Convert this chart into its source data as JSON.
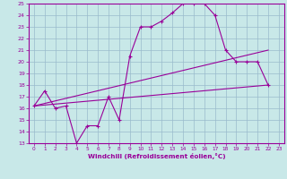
{
  "xlabel": "Windchill (Refroidissement éolien,°C)",
  "ylabel": "",
  "bg_color": "#c8e8e8",
  "line_color": "#990099",
  "grid_color": "#99bbcc",
  "xlim": [
    -0.5,
    23.5
  ],
  "ylim": [
    13,
    25
  ],
  "xticks": [
    0,
    1,
    2,
    3,
    4,
    5,
    6,
    7,
    8,
    9,
    10,
    11,
    12,
    13,
    14,
    15,
    16,
    17,
    18,
    19,
    20,
    21,
    22,
    23
  ],
  "yticks": [
    13,
    14,
    15,
    16,
    17,
    18,
    19,
    20,
    21,
    22,
    23,
    24,
    25
  ],
  "curve1_x": [
    0,
    1,
    2,
    3,
    4,
    5,
    6,
    7,
    8,
    9,
    10,
    11,
    12,
    13,
    14,
    15,
    16,
    17,
    18,
    19,
    20,
    21,
    22
  ],
  "curve1_y": [
    16.2,
    17.5,
    16.0,
    16.2,
    13.0,
    14.5,
    14.5,
    17.0,
    15.0,
    20.5,
    23.0,
    23.0,
    23.5,
    24.2,
    25.0,
    25.0,
    25.0,
    24.0,
    21.0,
    20.0,
    20.0,
    20.0,
    18.0
  ],
  "curve2_x": [
    0,
    22
  ],
  "curve2_y": [
    16.2,
    21.0
  ],
  "curve3_x": [
    0,
    22
  ],
  "curve3_y": [
    16.2,
    18.0
  ]
}
